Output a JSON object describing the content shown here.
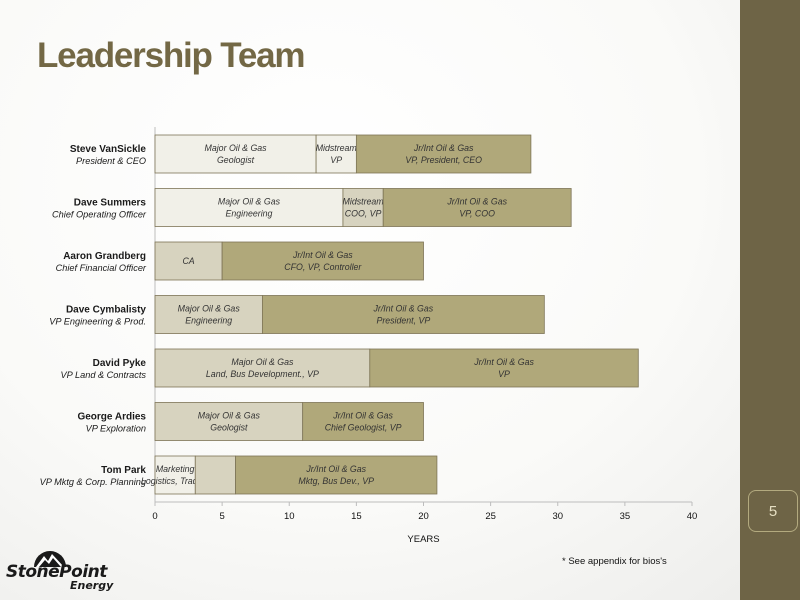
{
  "slide": {
    "title": "Leadership Team",
    "page_number": "5",
    "footnote": "* See appendix for bios's"
  },
  "logo": {
    "text": "StonePoint",
    "subtext": "Energy"
  },
  "colors": {
    "light": "#f1f0e8",
    "mid": "#d7d3bf",
    "dark": "#b0a87a",
    "border": "#7d7456",
    "sidebar": "#6e6446"
  },
  "chart_data": {
    "type": "bar",
    "orientation": "horizontal",
    "stacked": true,
    "xlabel": "YEARS",
    "xlim": [
      0,
      40
    ],
    "xticks": [
      0,
      5,
      10,
      15,
      20,
      25,
      30,
      35,
      40
    ],
    "grid": false,
    "people": [
      {
        "name": "Steve VanSickle",
        "role": "President & CEO",
        "segments": [
          {
            "lines": [
              "Major Oil & Gas",
              "Geologist"
            ],
            "value": 12,
            "shade": "light"
          },
          {
            "lines": [
              "Midstream",
              "VP"
            ],
            "value": 3,
            "shade": "light"
          },
          {
            "lines": [
              "Jr/Int Oil & Gas",
              "VP, President, CEO"
            ],
            "value": 13,
            "shade": "dark"
          }
        ]
      },
      {
        "name": "Dave Summers",
        "role": "Chief Operating Officer",
        "segments": [
          {
            "lines": [
              "Major Oil & Gas",
              "Engineering"
            ],
            "value": 14,
            "shade": "light"
          },
          {
            "lines": [
              "Midstream",
              "COO, VP"
            ],
            "value": 3,
            "shade": "mid"
          },
          {
            "lines": [
              "Jr/Int Oil & Gas",
              "VP, COO"
            ],
            "value": 14,
            "shade": "dark"
          }
        ]
      },
      {
        "name": "Aaron Grandberg",
        "role": "Chief Financial Officer",
        "segments": [
          {
            "lines": [
              "CA"
            ],
            "value": 5,
            "shade": "mid"
          },
          {
            "lines": [
              "Jr/Int Oil & Gas",
              "CFO, VP, Controller"
            ],
            "value": 15,
            "shade": "dark"
          }
        ]
      },
      {
        "name": "Dave Cymbalisty",
        "role": "VP Engineering & Prod.",
        "segments": [
          {
            "lines": [
              "Major Oil & Gas",
              "Engineering"
            ],
            "value": 8,
            "shade": "mid"
          },
          {
            "lines": [
              "Jr/Int Oil & Gas",
              "President, VP"
            ],
            "value": 21,
            "shade": "dark"
          }
        ]
      },
      {
        "name": "David Pyke",
        "role": "VP Land & Contracts",
        "segments": [
          {
            "lines": [
              "Major Oil & Gas",
              "Land, Bus Development., VP"
            ],
            "value": 16,
            "shade": "mid"
          },
          {
            "lines": [
              "Jr/Int Oil & Gas",
              "VP"
            ],
            "value": 20,
            "shade": "dark"
          }
        ]
      },
      {
        "name": "George Ardies",
        "role": "VP Exploration",
        "segments": [
          {
            "lines": [
              "Major Oil & Gas",
              "Geologist"
            ],
            "value": 11,
            "shade": "mid"
          },
          {
            "lines": [
              "Jr/Int Oil & Gas",
              "Chief Geologist, VP"
            ],
            "value": 9,
            "shade": "dark"
          }
        ]
      },
      {
        "name": "Tom Park",
        "role": "VP Mktg & Corp. Planning",
        "segments": [
          {
            "lines": [
              "Marketing",
              "Logistics, Trading"
            ],
            "value": 3,
            "shade": "light"
          },
          {
            "lines": [
              "",
              ""
            ],
            "value": 3,
            "shade": "mid"
          },
          {
            "lines": [
              "Jr/Int Oil & Gas",
              "Mktg, Bus Dev., VP"
            ],
            "value": 15,
            "shade": "dark"
          }
        ]
      }
    ]
  }
}
